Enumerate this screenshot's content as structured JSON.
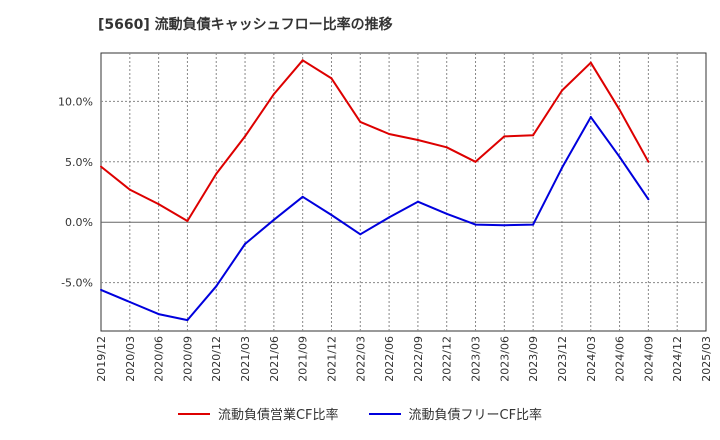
{
  "chart_data": {
    "type": "line",
    "title": "[5660]  流動負債キャッシュフロー比率の推移",
    "categories": [
      "2019/12",
      "2020/03",
      "2020/06",
      "2020/09",
      "2020/12",
      "2021/03",
      "2021/06",
      "2021/09",
      "2021/12",
      "2022/03",
      "2022/06",
      "2022/09",
      "2022/12",
      "2023/03",
      "2023/06",
      "2023/09",
      "2023/12",
      "2024/03",
      "2024/06",
      "2024/09",
      "2024/12",
      "2025/03"
    ],
    "ylim": [
      -9.0,
      14.0
    ],
    "yticks": [
      -5.0,
      0.0,
      5.0,
      10.0
    ],
    "ytick_labels": [
      "-5.0%",
      "0.0%",
      "5.0%",
      "10.0%"
    ],
    "grid": true,
    "legend_position": "bottom",
    "series": [
      {
        "name": "流動負債営業CF比率",
        "color": "#dd0000",
        "values": [
          4.6,
          2.7,
          1.5,
          0.1,
          4.0,
          7.1,
          10.6,
          13.4,
          11.9,
          8.3,
          7.3,
          6.8,
          6.2,
          5.0,
          7.1,
          7.2,
          10.9,
          13.2,
          9.3,
          5.0,
          null,
          null
        ]
      },
      {
        "name": "流動負債フリーCF比率",
        "color": "#0000dd",
        "values": [
          -5.6,
          -6.6,
          -7.6,
          -8.1,
          -5.3,
          -1.8,
          0.2,
          2.1,
          0.6,
          -1.0,
          0.4,
          1.7,
          0.7,
          -0.2,
          -0.25,
          -0.2,
          4.5,
          8.7,
          5.4,
          1.9,
          null,
          null
        ]
      }
    ]
  }
}
